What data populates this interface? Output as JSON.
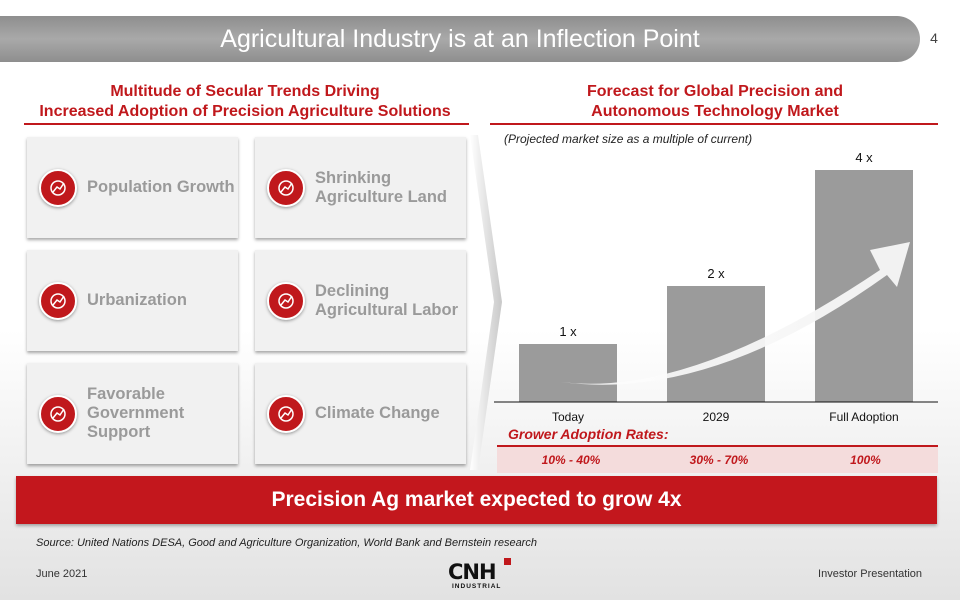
{
  "header": {
    "title": "Agricultural Industry is at an Inflection Point",
    "page_number": "4"
  },
  "left": {
    "title_line1": "Multitude of Secular Trends Driving",
    "title_line2": "Increased Adoption of Precision Agriculture Solutions",
    "cards": [
      {
        "icon": "growth-chart-icon",
        "label": "Population Growth"
      },
      {
        "icon": "sprout-icon",
        "label": "Shrinking Agriculture Land"
      },
      {
        "icon": "city-buildings-icon",
        "label": "Urbanization"
      },
      {
        "icon": "farm-worker-icon",
        "label": "Declining Agricultural Labor"
      },
      {
        "icon": "government-building-icon",
        "label": "Favorable Government Support"
      },
      {
        "icon": "globe-thermometer-icon",
        "label": "Climate Change"
      }
    ]
  },
  "right": {
    "title_line1": "Forecast for Global Precision and",
    "title_line2": "Autonomous Technology Market",
    "subtitle": "(Projected market size as a multiple of current)",
    "adoption_title": "Grower Adoption Rates:",
    "adoption_rates": [
      "10% - 40%",
      "30% - 70%",
      "100%"
    ]
  },
  "chart_data": {
    "type": "bar",
    "title": "Forecast for Global Precision and Autonomous Technology Market",
    "subtitle": "(Projected market size as a multiple of current)",
    "categories": [
      "Today",
      "2029",
      "Full Adoption"
    ],
    "values": [
      1,
      2,
      4
    ],
    "data_labels": [
      "1 x",
      "2 x",
      "4 x"
    ],
    "ylim": [
      0,
      4.2
    ],
    "bar_color": "#9b9b9b",
    "grid": false
  },
  "banner": "Precision Ag market expected to grow 4x",
  "source": "Source: United Nations DESA, Good and Agriculture Organization, World Bank and Bernstein research",
  "footer": {
    "date": "June 2021",
    "logo_text": "CNH INDUSTRIAL",
    "right": "Investor Presentation"
  },
  "colors": {
    "accent": "#c0181c",
    "bar": "#9b9b9b",
    "header": "#9a9a9a"
  }
}
